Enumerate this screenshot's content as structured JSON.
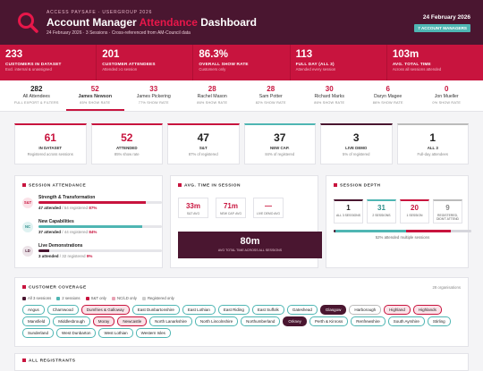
{
  "header": {
    "kicker": "ACCESS PAYSAFE · USERGROUP 2026",
    "title_part1": "Account Manager ",
    "title_accent": "Attendance",
    "title_part2": " Dashboard",
    "subtitle": "24 February 2026 · 3 Sessions · Cross-referenced from AM-Council data",
    "date": "24 February 2026",
    "badge": "7 ACCOUNT MANAGERS",
    "colors": {
      "header_bg": "#4a1630",
      "accent": "#e8174a",
      "kpi_bg": "#c8143e",
      "teal": "#4fb6b3"
    }
  },
  "kpis": [
    {
      "value": "233",
      "label": "CUSTOMERS IN DATASET",
      "sub": "Excl. internal & unassigned"
    },
    {
      "value": "201",
      "label": "CUSTOMER ATTENDEES",
      "sub": "Attended ≥1 session"
    },
    {
      "value": "86.3%",
      "label": "OVERALL SHOW RATE",
      "sub": "Customers only"
    },
    {
      "value": "113",
      "label": "FULL DAY (ALL 3)",
      "sub": "Attended every session"
    },
    {
      "value": "103m",
      "label": "AVG. TOTAL TIME",
      "sub": "Across all sessions attended"
    }
  ],
  "tabs": [
    {
      "value": "282",
      "name": "All Attendees",
      "rate": "FULL EXPORT & FILTERS"
    },
    {
      "value": "52",
      "name": "James Newson",
      "rate": "85% SHOW RATE"
    },
    {
      "value": "33",
      "name": "James Pickering",
      "rate": "77% SHOW RATE"
    },
    {
      "value": "28",
      "name": "Rachel Mason",
      "rate": "86% SHOW RATE"
    },
    {
      "value": "28",
      "name": "Sam Potter",
      "rate": "82% SHOW RATE"
    },
    {
      "value": "30",
      "name": "Richard Marks",
      "rate": "86% SHOW RATE"
    },
    {
      "value": "6",
      "name": "Daryn Magee",
      "rate": "86% SHOW RATE"
    },
    {
      "value": "0",
      "name": "Jon Mueller",
      "rate": "0% SHOW RATE"
    }
  ],
  "cards": [
    {
      "value": "61",
      "label": "IN DATASET",
      "sub": "Registered across sessions",
      "color": "#c8143e",
      "top": "#c8143e"
    },
    {
      "value": "52",
      "label": "ATTENDED",
      "sub": "85% show rate",
      "color": "#c8143e",
      "top": "#c8143e"
    },
    {
      "value": "47",
      "label": "S&T",
      "sub": "87% of registered",
      "color": "#222",
      "top": "#c8143e"
    },
    {
      "value": "37",
      "label": "NEW CAP.",
      "sub": "84% of registered",
      "color": "#222",
      "top": "#4fb6b3"
    },
    {
      "value": "3",
      "label": "LIVE DEMO",
      "sub": "5% of registered",
      "color": "#222",
      "top": "#4a1630"
    },
    {
      "value": "1",
      "label": "ALL 3",
      "sub": "Full-day attendees",
      "color": "#222",
      "top": "#bbbbbb"
    }
  ],
  "session_attendance": {
    "title": "SESSION ATTENDANCE",
    "sessions": [
      {
        "code": "S&T",
        "name": "Strength & Transformation",
        "attended": "47 attended",
        "registered": "/ 54 registered",
        "pct": "87%",
        "fill": 0.87,
        "color": "#c8143e",
        "bub_bg": "#fbe2e8",
        "bub_fg": "#c8143e"
      },
      {
        "code": "NC",
        "name": "New Capabilities",
        "attended": "37 attended",
        "registered": "/ 44 registered",
        "pct": "84%",
        "fill": 0.84,
        "color": "#4fb6b3",
        "bub_bg": "#dff2f1",
        "bub_fg": "#2e8f8c"
      },
      {
        "code": "LD",
        "name": "Live Demonstrations",
        "attended": "3 attended",
        "registered": "/ 32 registered",
        "pct": "9%",
        "fill": 0.09,
        "color": "#4a1630",
        "bub_bg": "#ece3e8",
        "bub_fg": "#4a1630"
      }
    ]
  },
  "avg_time": {
    "title": "AVG. TIME IN SESSION",
    "boxes": [
      {
        "value": "33m",
        "label": "S&T AVG"
      },
      {
        "value": "71m",
        "label": "NEW CAP. AVG"
      },
      {
        "value": "—",
        "label": "LIVE DEMO AVG"
      }
    ],
    "total_value": "80m",
    "total_label": "AVG TOTAL TIME ACROSS ALL SESSIONS"
  },
  "session_depth": {
    "title": "SESSION DEPTH",
    "boxes": [
      {
        "value": "1",
        "label": "ALL 3 SESSIONS",
        "top": "#4a1630",
        "color": "#222"
      },
      {
        "value": "31",
        "label": "2 SESSIONS",
        "top": "#4fb6b3",
        "color": "#2e8f8c"
      },
      {
        "value": "20",
        "label": "1 SESSION",
        "top": "#c8143e",
        "color": "#c8143e"
      },
      {
        "value": "9",
        "label": "REGISTERED, DIDN'T ATTEND",
        "top": "#bbbbbb",
        "color": "#888"
      }
    ],
    "segments": [
      {
        "share": 0.016,
        "color": "#4a1630"
      },
      {
        "share": 0.508,
        "color": "#4fb6b3"
      },
      {
        "share": 0.328,
        "color": "#c8143e"
      },
      {
        "share": 0.148,
        "color": "#d6d6dc"
      }
    ],
    "caption": "52% attended multiple sessions"
  },
  "coverage": {
    "title": "CUSTOMER COVERAGE",
    "count": "28 organisations",
    "legend": [
      {
        "label": "All 3 sessions",
        "color": "#4a1630"
      },
      {
        "label": "2 sessions",
        "color": "#4fb6b3"
      },
      {
        "label": "S&T only",
        "color": "#c8143e"
      },
      {
        "label": "NC/LD only",
        "color": "#e8a1b3"
      },
      {
        "label": "Registered only",
        "color": "#cccccc"
      }
    ],
    "chips": [
      {
        "name": "Angus",
        "type": "two"
      },
      {
        "name": "Charnwood",
        "type": "two"
      },
      {
        "name": "Dumfries & Galloway",
        "type": "sp"
      },
      {
        "name": "East Dunbartonshire",
        "type": "two"
      },
      {
        "name": "East Lothian",
        "type": "two"
      },
      {
        "name": "East Riding",
        "type": "two"
      },
      {
        "name": "East Suffolk",
        "type": "two"
      },
      {
        "name": "Gateshead",
        "type": "two"
      },
      {
        "name": "Glasgow",
        "type": "bo"
      },
      {
        "name": "Harborough",
        "type": "no"
      },
      {
        "name": "Highland",
        "type": "sp"
      },
      {
        "name": "Highlands",
        "type": "sp"
      },
      {
        "name": "Mansfield",
        "type": "two"
      },
      {
        "name": "Middlesbrough",
        "type": "two"
      },
      {
        "name": "Moray",
        "type": "sp"
      },
      {
        "name": "Newcastle",
        "type": "sp"
      },
      {
        "name": "North Lanarkshire",
        "type": "two"
      },
      {
        "name": "North Lincolnshire",
        "type": "two"
      },
      {
        "name": "Northumberland",
        "type": "two"
      },
      {
        "name": "Orkney",
        "type": "bo"
      },
      {
        "name": "Perth & Kinross",
        "type": "two"
      },
      {
        "name": "Renfrewshire",
        "type": "two"
      },
      {
        "name": "South Ayrshire",
        "type": "two"
      },
      {
        "name": "Stirling",
        "type": "two"
      },
      {
        "name": "Sunderland",
        "type": "two"
      },
      {
        "name": "West Dunbarton",
        "type": "two"
      },
      {
        "name": "West Lothian",
        "type": "two"
      },
      {
        "name": "Western Isles",
        "type": "two"
      }
    ]
  },
  "registrants": {
    "title": "ALL REGISTRANTS"
  }
}
